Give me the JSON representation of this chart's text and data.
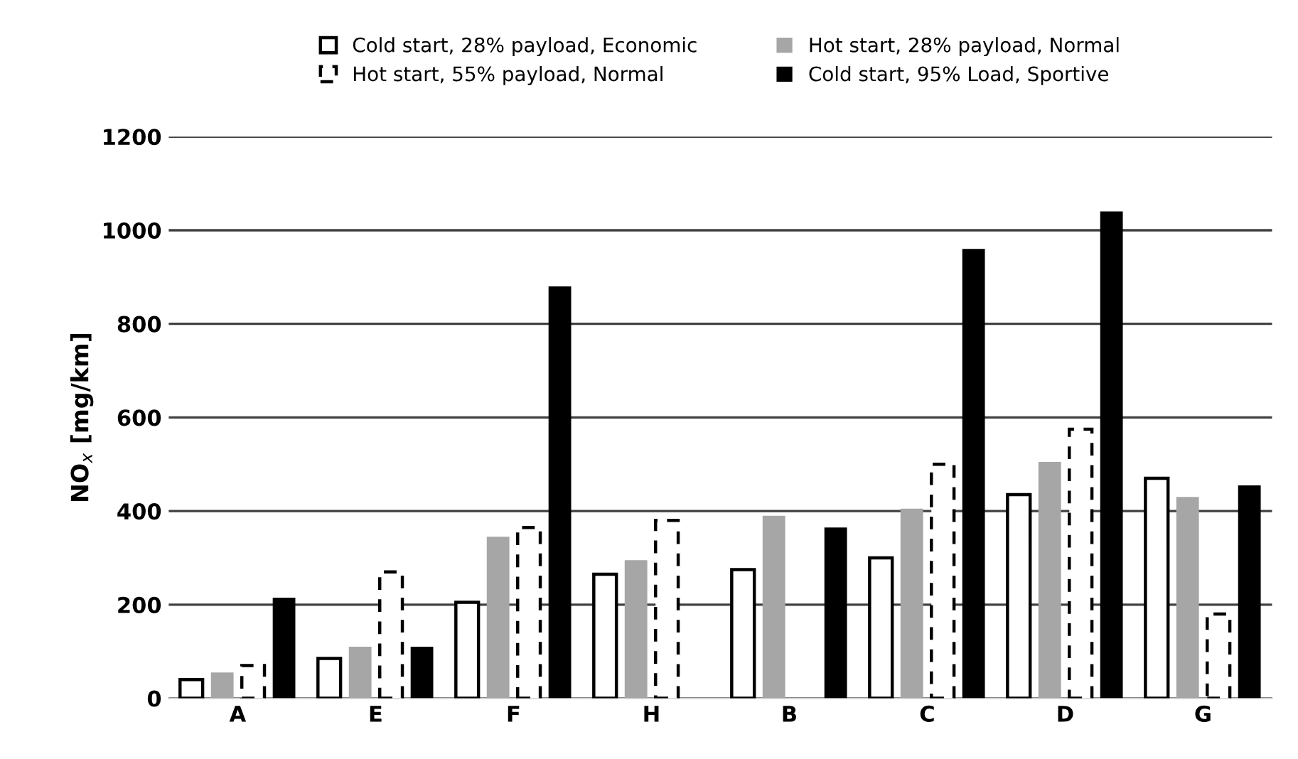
{
  "chart_data": {
    "type": "bar",
    "ylabel": "NO$_{x}$ [mg/km]",
    "categories": [
      "A",
      "E",
      "F",
      "H",
      "B",
      "C",
      "D",
      "G"
    ],
    "series": [
      {
        "name": "Cold start, 28% payload, Economic",
        "color": "#ffffff",
        "line_style": "solid",
        "values": [
          40,
          85,
          205,
          265,
          275,
          300,
          435,
          470
        ]
      },
      {
        "name": "Hot start, 28% payload, Normal",
        "color": "#a6a6a6",
        "values": [
          55,
          110,
          345,
          295,
          390,
          405,
          505,
          430
        ]
      },
      {
        "name": "Hot start, 55% payload, Normal",
        "color": "#ffffff",
        "line_style": "dashed",
        "values": [
          70,
          270,
          365,
          380,
          null,
          500,
          575,
          180
        ]
      },
      {
        "name": "Cold start, 95% Load, Sportive",
        "color": "#000000",
        "values": [
          215,
          110,
          880,
          null,
          365,
          960,
          1040,
          455
        ]
      }
    ],
    "ylim": [
      0,
      1200
    ],
    "yticks": [
      0,
      200,
      400,
      600,
      800,
      1000,
      1200
    ],
    "grid": "y",
    "legend": "top"
  }
}
